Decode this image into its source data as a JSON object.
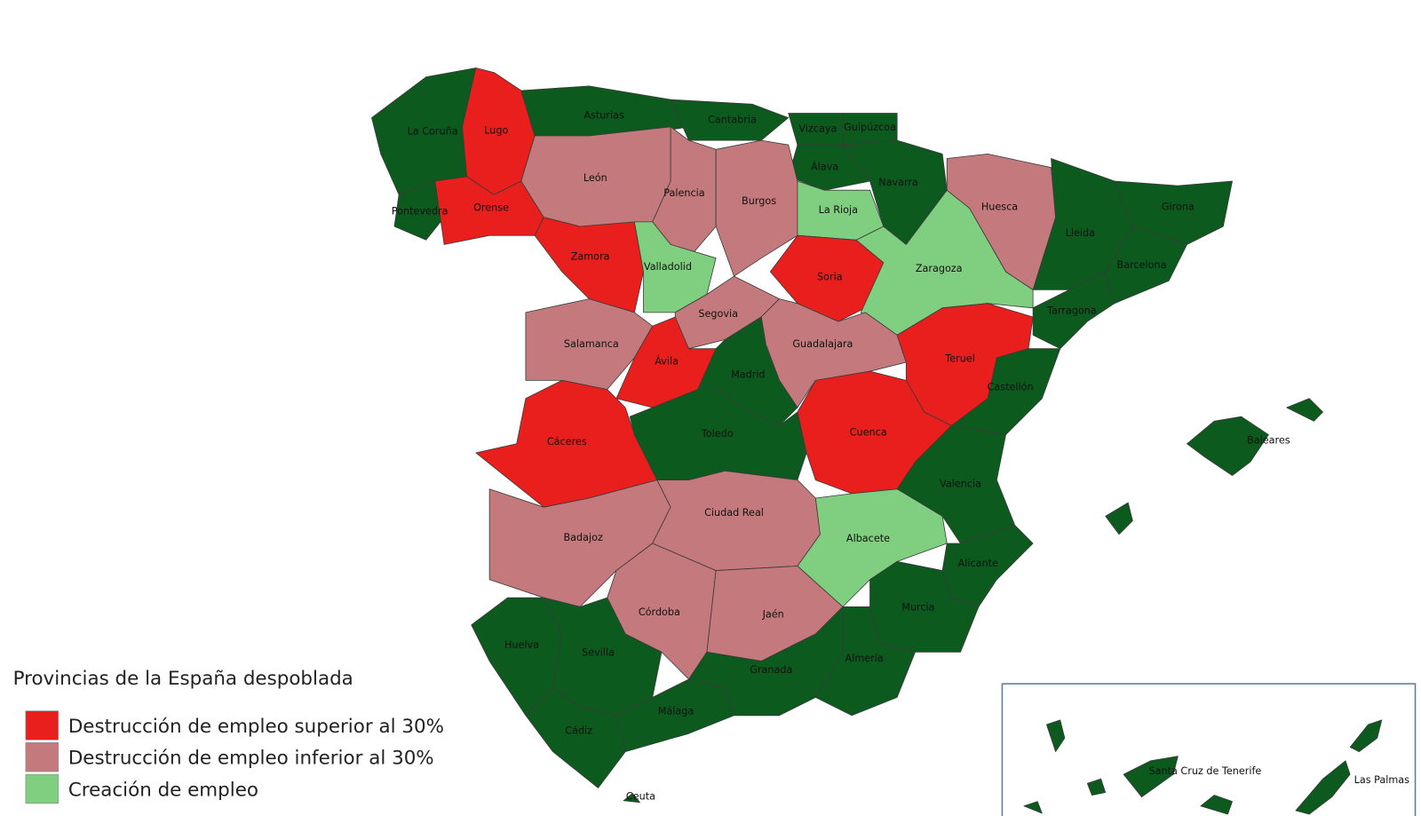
{
  "legend": {
    "title": "Provincias de la España despoblada",
    "items": [
      {
        "label": "Destrucción de empleo superior al 30%",
        "color": "#e81f1c"
      },
      {
        "label": "Destrucción de empleo inferior al 30%",
        "color": "#c47a7c"
      },
      {
        "label": "Creación de empleo",
        "color": "#80cf80"
      }
    ]
  },
  "other_color": "#0c5a1e",
  "provinces": [
    {
      "name": "La Coruña",
      "category": null
    },
    {
      "name": "Pontevedra",
      "category": null
    },
    {
      "name": "Lugo",
      "category": 0
    },
    {
      "name": "Orense",
      "category": 0
    },
    {
      "name": "Asturias",
      "category": null
    },
    {
      "name": "Cantabria",
      "category": null
    },
    {
      "name": "Vizcaya",
      "category": null
    },
    {
      "name": "Guipúzcoa",
      "category": null
    },
    {
      "name": "Álava",
      "category": null
    },
    {
      "name": "Navarra",
      "category": null
    },
    {
      "name": "León",
      "category": 1
    },
    {
      "name": "Palencia",
      "category": 1
    },
    {
      "name": "Burgos",
      "category": 1
    },
    {
      "name": "La Rioja",
      "category": 2
    },
    {
      "name": "Zamora",
      "category": 0
    },
    {
      "name": "Valladolid",
      "category": 2
    },
    {
      "name": "Soria",
      "category": 0
    },
    {
      "name": "Zaragoza",
      "category": 2
    },
    {
      "name": "Huesca",
      "category": 1
    },
    {
      "name": "Lleida",
      "category": null
    },
    {
      "name": "Girona",
      "category": null
    },
    {
      "name": "Barcelona",
      "category": null
    },
    {
      "name": "Tarragona",
      "category": null
    },
    {
      "name": "Salamanca",
      "category": 1
    },
    {
      "name": "Segovia",
      "category": 1
    },
    {
      "name": "Ávila",
      "category": 0
    },
    {
      "name": "Guadalajara",
      "category": 1
    },
    {
      "name": "Madrid",
      "category": null
    },
    {
      "name": "Teruel",
      "category": 0
    },
    {
      "name": "Castellón",
      "category": null
    },
    {
      "name": "Cáceres",
      "category": 0
    },
    {
      "name": "Toledo",
      "category": null
    },
    {
      "name": "Cuenca",
      "category": 0
    },
    {
      "name": "Valencia",
      "category": null
    },
    {
      "name": "Badajoz",
      "category": 1
    },
    {
      "name": "Ciudad Real",
      "category": 1
    },
    {
      "name": "Albacete",
      "category": 2
    },
    {
      "name": "Alicante",
      "category": null
    },
    {
      "name": "Murcia",
      "category": null
    },
    {
      "name": "Córdoba",
      "category": 1
    },
    {
      "name": "Jaén",
      "category": 1
    },
    {
      "name": "Huelva",
      "category": null
    },
    {
      "name": "Sevilla",
      "category": null
    },
    {
      "name": "Cádiz",
      "category": null
    },
    {
      "name": "Málaga",
      "category": null
    },
    {
      "name": "Granada",
      "category": null
    },
    {
      "name": "Almería",
      "category": null
    },
    {
      "name": "Baleares",
      "category": null
    },
    {
      "name": "Santa Cruz de Tenerife",
      "category": null
    },
    {
      "name": "Las Palmas",
      "category": null
    },
    {
      "name": "Ceuta",
      "category": null
    }
  ]
}
